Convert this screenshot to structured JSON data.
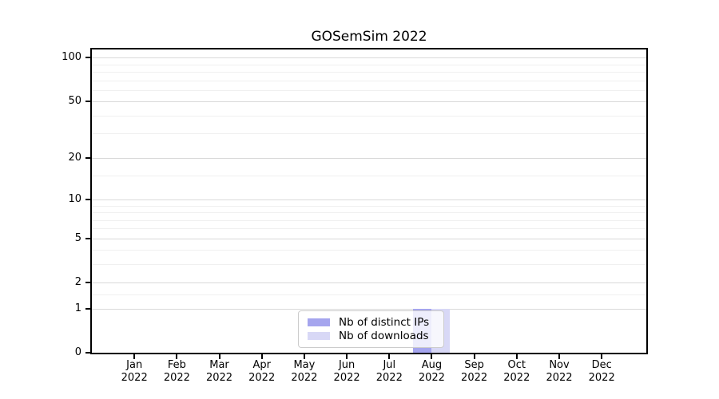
{
  "title": "GOSemSim 2022",
  "chart_data": {
    "type": "bar",
    "title": "GOSemSim 2022",
    "categories": [
      "Jan",
      "Feb",
      "Mar",
      "Apr",
      "May",
      "Jun",
      "Jul",
      "Aug",
      "Sep",
      "Oct",
      "Nov",
      "Dec"
    ],
    "year_label": "2022",
    "series": [
      {
        "name": "Nb of distinct IPs",
        "color": "#a5a5ee",
        "values": [
          0,
          0,
          0,
          0,
          0,
          0,
          0,
          1,
          0,
          0,
          0,
          0
        ]
      },
      {
        "name": "Nb of downloads",
        "color": "#d8d8f6",
        "values": [
          0,
          0,
          0,
          0,
          0,
          0,
          0,
          1,
          0,
          0,
          0,
          0
        ]
      }
    ],
    "xlabel": "",
    "ylabel": "",
    "yscale": "log1p",
    "ylim": [
      0,
      114
    ],
    "yticks": [
      0,
      1,
      2,
      5,
      10,
      20,
      50,
      100
    ],
    "minor_yticks": [
      1.5,
      3,
      4,
      6,
      7,
      8,
      9,
      15,
      30,
      40,
      60,
      70,
      80,
      90
    ],
    "grid": "horizontal",
    "legend_position": "lower-center-inside"
  },
  "colors": {
    "major_grid": "#d9d9d9",
    "minor_grid": "#f0f0f0",
    "spine": "#000000",
    "legend_border": "#cccccc"
  }
}
